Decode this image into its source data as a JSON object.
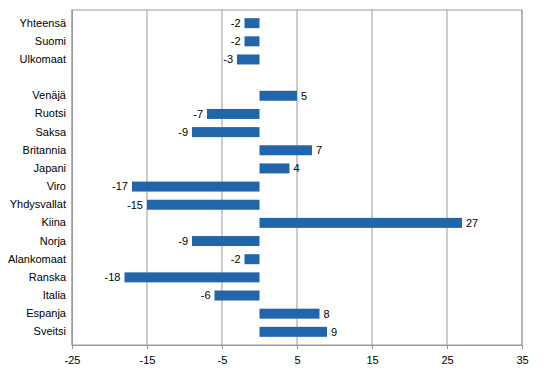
{
  "chart_data": {
    "type": "bar",
    "orientation": "horizontal",
    "categories": [
      "Yhteensä",
      "Suomi",
      "Ulkomaat",
      null,
      "Venäjä",
      "Ruotsi",
      "Saksa",
      "Britannia",
      "Japani",
      "Viro",
      "Yhdysvallat",
      "Kiina",
      "Norja",
      "Alankomaat",
      "Ranska",
      "Italia",
      "Espanja",
      "Sveitsi"
    ],
    "values": [
      -2,
      -2,
      -3,
      null,
      5,
      -7,
      -9,
      7,
      4,
      -17,
      -15,
      27,
      -9,
      -2,
      -18,
      -6,
      8,
      9
    ],
    "color": "#2166ac",
    "xlim": [
      -25,
      35
    ],
    "xticks": [
      -25,
      -15,
      -5,
      5,
      15,
      25,
      35
    ],
    "grid": true,
    "data_labels": true
  }
}
